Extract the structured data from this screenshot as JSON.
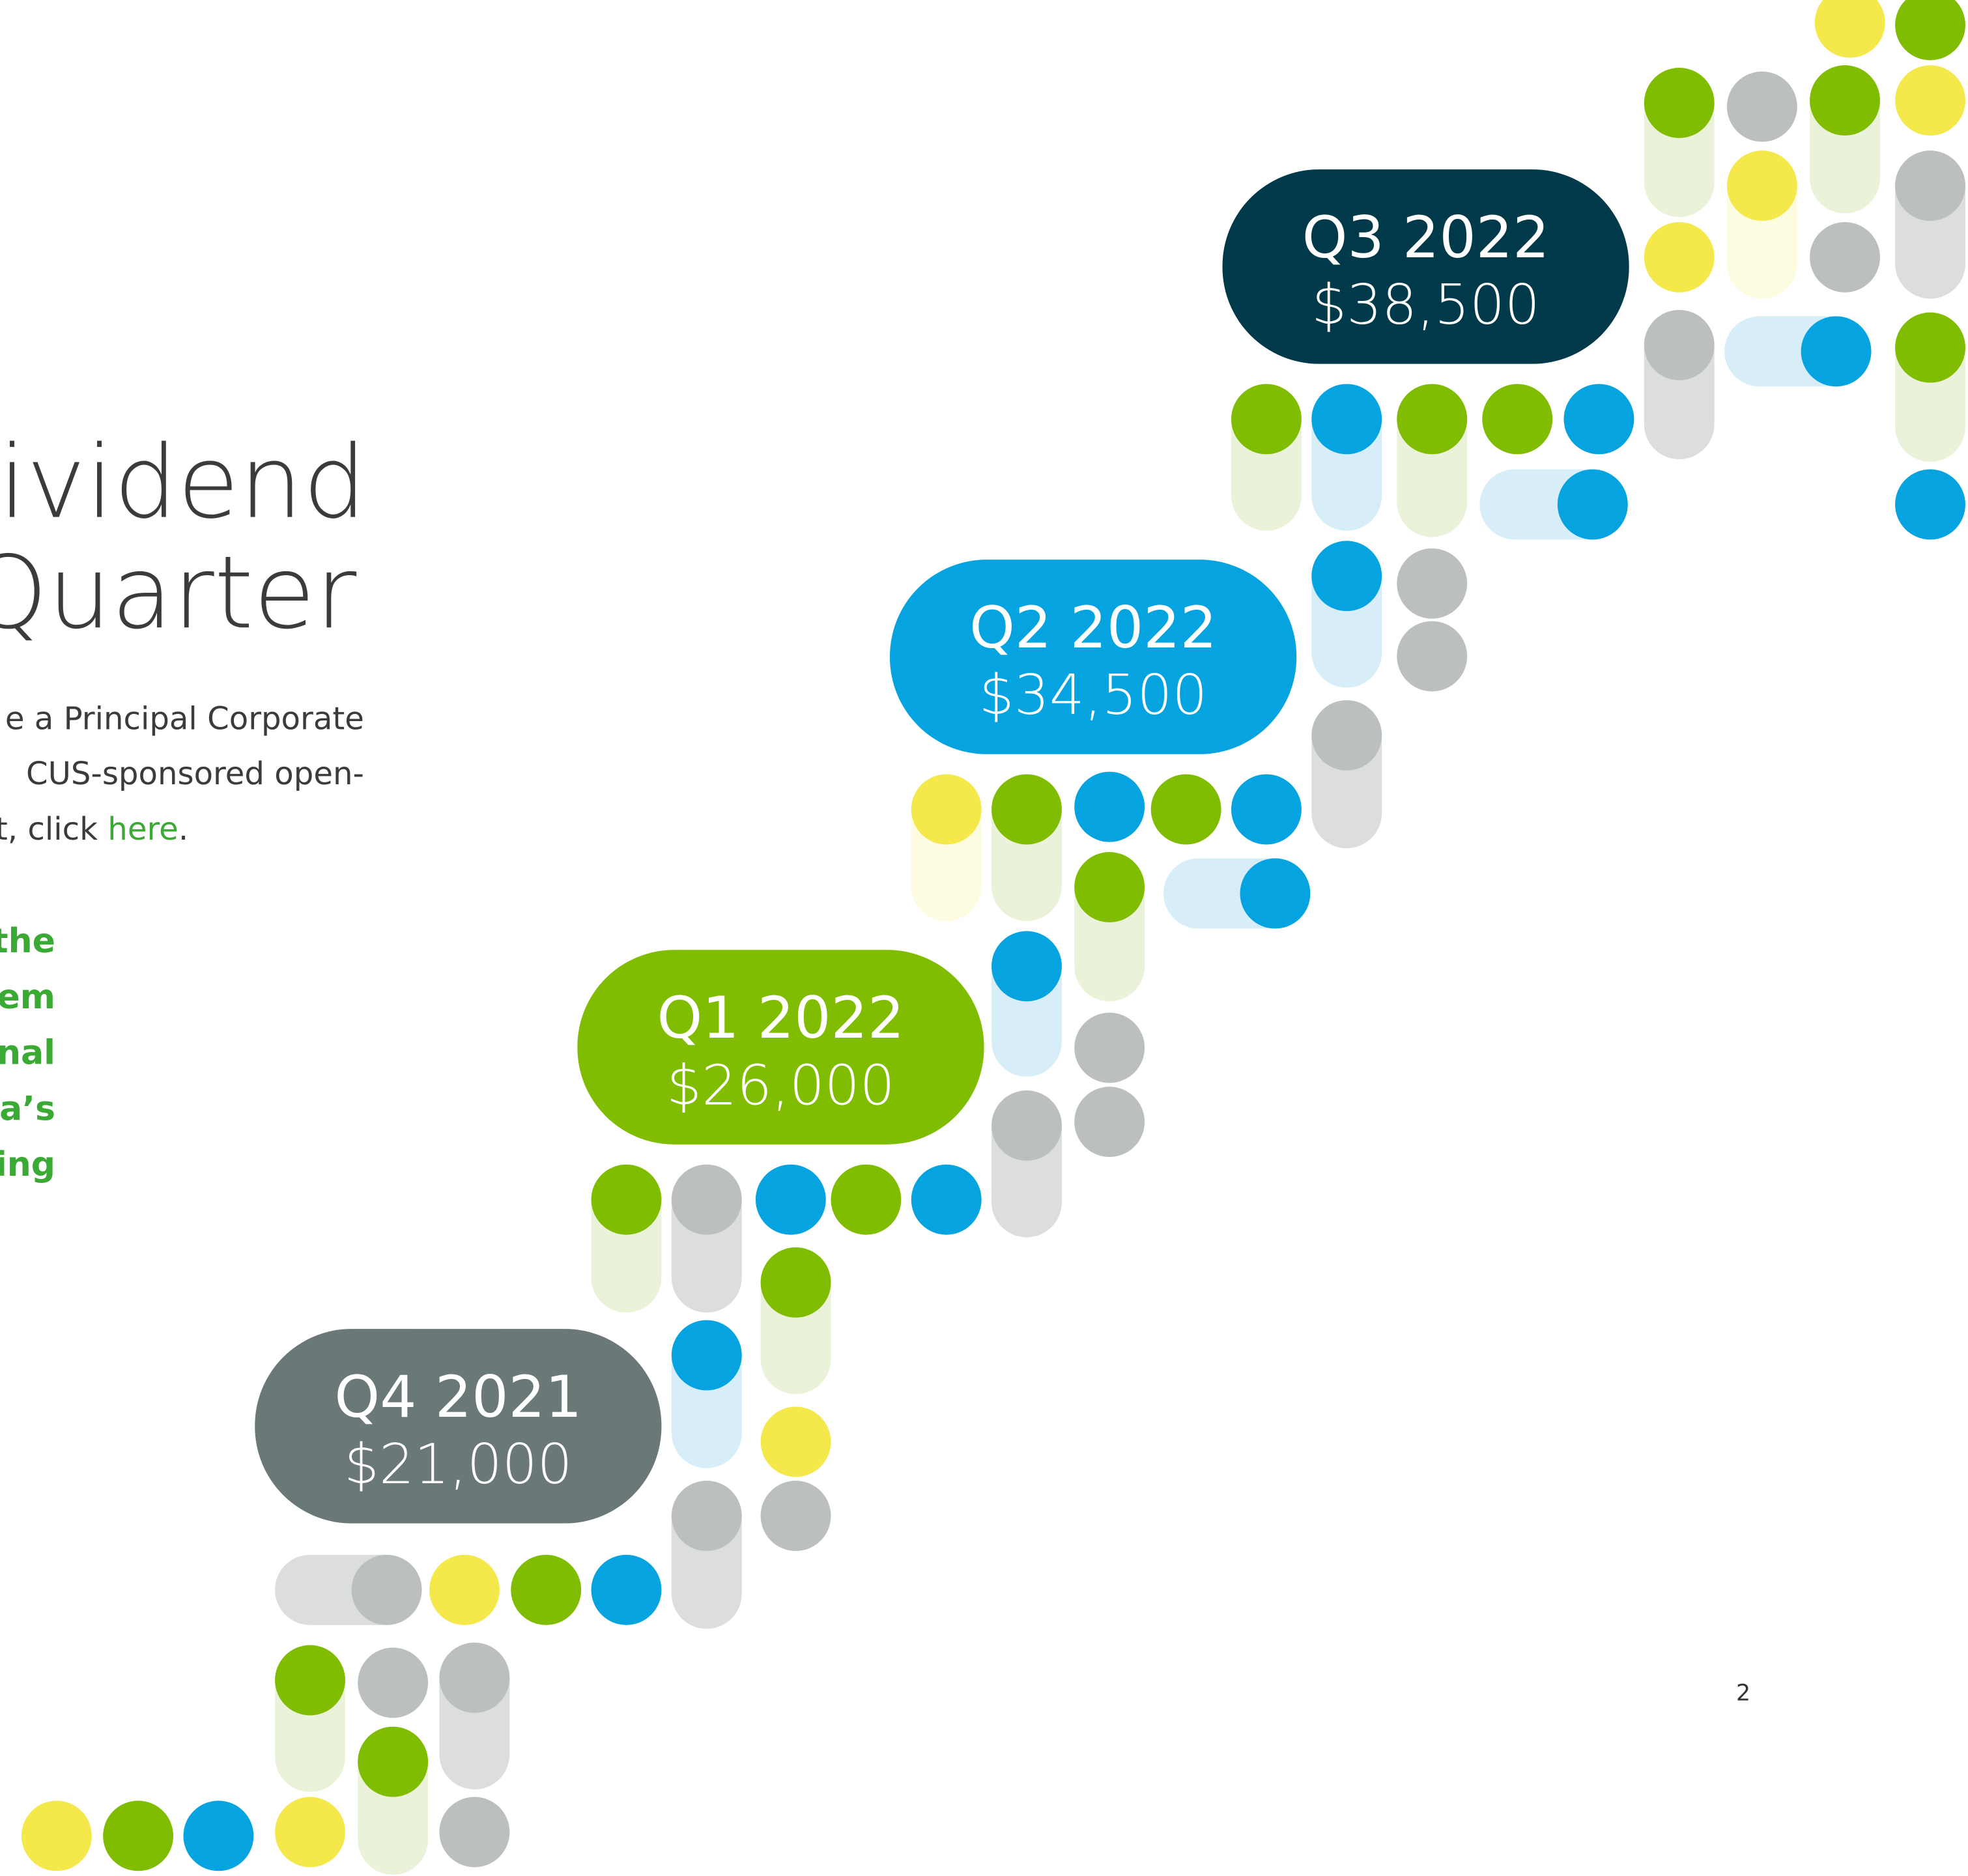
{
  "heading": {
    "lines": [
      "Dividend",
      "Quarter"
    ]
  },
  "intro": {
    "lines": [
      "e a Principal Corporate",
      "CUS-sponsored open-"
    ],
    "last_line": {
      "text": "t, click ",
      "link": "here",
      "end": "."
    }
  },
  "highlight": {
    "lines": [
      "the",
      "em",
      "nal",
      "la’s",
      "ing"
    ]
  },
  "quarters": [
    {
      "label": "Q4 2021",
      "amount": "$21,000"
    },
    {
      "label": "Q1 2022",
      "amount": "$26,000"
    },
    {
      "label": "Q2 2022",
      "amount": "$34,500"
    },
    {
      "label": "Q3 2022",
      "amount": "$38,500"
    }
  ],
  "page_number": "2"
}
